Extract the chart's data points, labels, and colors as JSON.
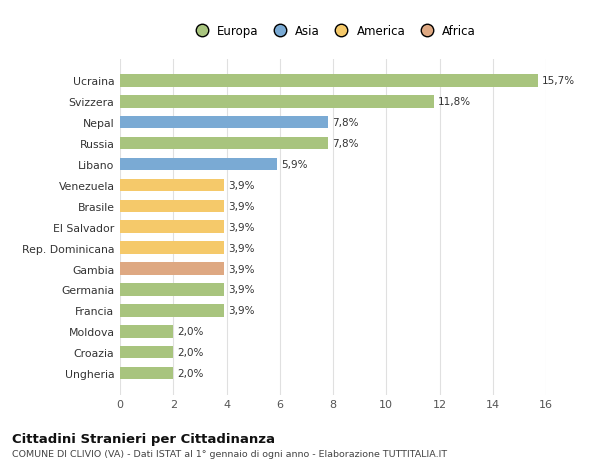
{
  "categories": [
    "Ungheria",
    "Croazia",
    "Moldova",
    "Francia",
    "Germania",
    "Gambia",
    "Rep. Dominicana",
    "El Salvador",
    "Brasile",
    "Venezuela",
    "Libano",
    "Russia",
    "Nepal",
    "Svizzera",
    "Ucraina"
  ],
  "values": [
    2.0,
    2.0,
    2.0,
    3.9,
    3.9,
    3.9,
    3.9,
    3.9,
    3.9,
    3.9,
    5.9,
    7.8,
    7.8,
    11.8,
    15.7
  ],
  "labels": [
    "2,0%",
    "2,0%",
    "2,0%",
    "3,9%",
    "3,9%",
    "3,9%",
    "3,9%",
    "3,9%",
    "3,9%",
    "3,9%",
    "5,9%",
    "7,8%",
    "7,8%",
    "11,8%",
    "15,7%"
  ],
  "colors": [
    "#a8c47e",
    "#a8c47e",
    "#a8c47e",
    "#a8c47e",
    "#a8c47e",
    "#dea882",
    "#f5c96a",
    "#f5c96a",
    "#f5c96a",
    "#f5c96a",
    "#7aaad4",
    "#a8c47e",
    "#7aaad4",
    "#a8c47e",
    "#a8c47e"
  ],
  "legend_labels": [
    "Europa",
    "Asia",
    "America",
    "Africa"
  ],
  "legend_colors": [
    "#a8c47e",
    "#7aaad4",
    "#f5c96a",
    "#dea882"
  ],
  "title": "Cittadini Stranieri per Cittadinanza",
  "subtitle": "COMUNE DI CLIVIO (VA) - Dati ISTAT al 1° gennaio di ogni anno - Elaborazione TUTTITALIA.IT",
  "xlim": [
    0,
    16
  ],
  "xticks": [
    0,
    2,
    4,
    6,
    8,
    10,
    12,
    14,
    16
  ],
  "background_color": "#ffffff",
  "grid_color": "#e0e0e0",
  "bar_height": 0.6
}
